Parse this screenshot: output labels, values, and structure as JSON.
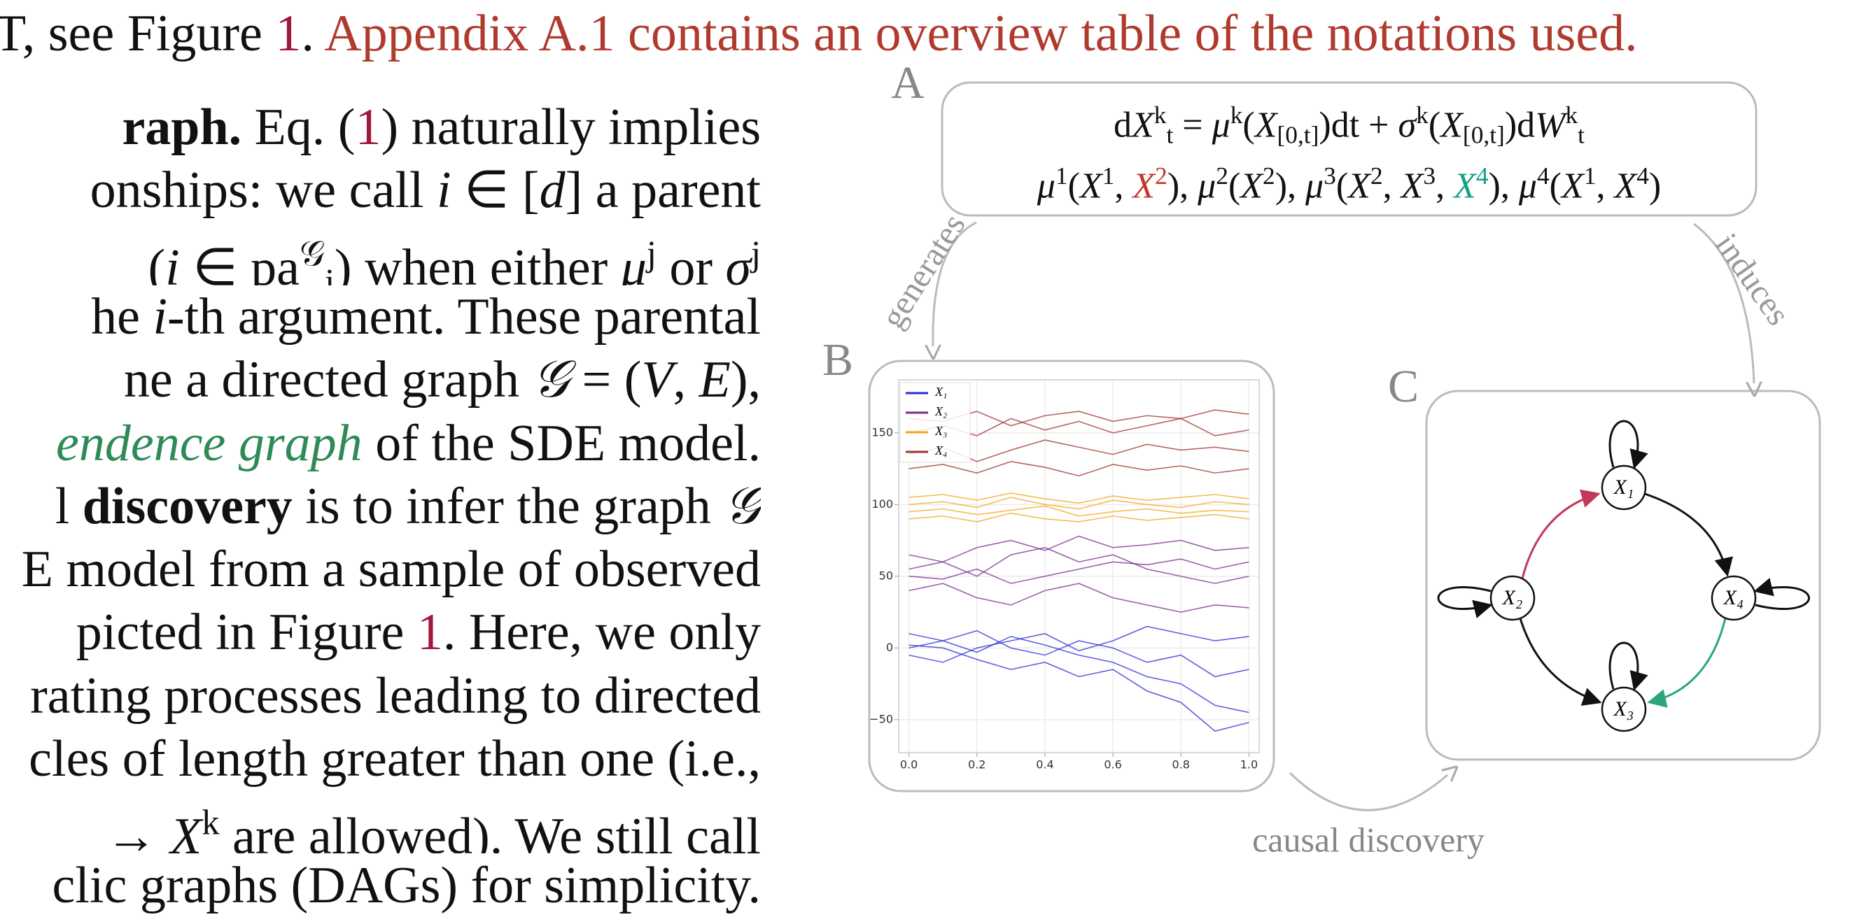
{
  "text": {
    "top_line": [
      {
        "t": "T, see Figure "
      },
      {
        "t": "1",
        "c": "#a0183c"
      },
      {
        "t": ". "
      },
      {
        "t": "Appendix A.1 contains an overview table of the notations used.",
        "c": "#b03a2e"
      }
    ],
    "paragraph": [
      [
        {
          "t": "raph.",
          "s": "b"
        },
        {
          "t": "   Eq. ("
        },
        {
          "t": "1",
          "c": "#a0183c"
        },
        {
          "t": ") naturally implies"
        }
      ],
      [
        {
          "t": "onships: we call "
        },
        {
          "t": "i",
          "s": "i"
        },
        {
          "t": " ∈ ["
        },
        {
          "t": "d",
          "s": "i"
        },
        {
          "t": "] a parent"
        }
      ],
      [
        {
          "t": "("
        },
        {
          "t": "i",
          "s": "i"
        },
        {
          "t": " ∈ pa"
        },
        {
          "t": "𝒢",
          "s": "sup"
        },
        {
          "t": "j",
          "s": "sub"
        },
        {
          "t": ") when either "
        },
        {
          "t": "μ",
          "s": "i"
        },
        {
          "t": "j",
          "s": "sup"
        },
        {
          "t": " or "
        },
        {
          "t": "σ",
          "s": "i"
        },
        {
          "t": "j",
          "s": "sup"
        }
      ],
      [
        {
          "t": "he "
        },
        {
          "t": "i",
          "s": "i"
        },
        {
          "t": "-th argument. These parental"
        }
      ],
      [
        {
          "t": "ne a directed graph "
        },
        {
          "t": "𝒢",
          "s": "i"
        },
        {
          "t": " = ("
        },
        {
          "t": "V",
          "s": "i"
        },
        {
          "t": ", "
        },
        {
          "t": "E",
          "s": "i"
        },
        {
          "t": "),"
        }
      ],
      [
        {
          "t": "endence graph",
          "s": "i",
          "c": "#2e8b57"
        },
        {
          "t": " of the SDE model."
        }
      ],
      [
        {
          "t": "l "
        },
        {
          "t": "discovery",
          "s": "b"
        },
        {
          "t": " is to infer the graph "
        },
        {
          "t": "𝒢",
          "s": "i"
        }
      ],
      [
        {
          "t": "E model from a sample of observed"
        }
      ],
      [
        {
          "t": "picted in Figure "
        },
        {
          "t": "1",
          "c": "#a0183c"
        },
        {
          "t": ". Here, we only"
        }
      ],
      [
        {
          "t": "rating processes leading to directed"
        }
      ],
      [
        {
          "t": "cles of length greater than one (i.e.,"
        }
      ],
      [
        {
          "t": "→ "
        },
        {
          "t": "X",
          "s": "i"
        },
        {
          "t": "k",
          "s": "sup"
        },
        {
          "t": " are allowed). We still call"
        }
      ],
      [
        {
          "t": "clic graphs (DAGs) for simplicity."
        }
      ]
    ]
  },
  "figure": {
    "panel_labels": [
      "A",
      "B",
      "C"
    ],
    "equations": [
      [
        {
          "t": "d"
        },
        {
          "t": "X",
          "s": "i"
        },
        {
          "t": "k",
          "s": "sup"
        },
        {
          "t": "t",
          "s": "sub"
        },
        {
          "t": " = "
        },
        {
          "t": "μ",
          "s": "i"
        },
        {
          "t": "k",
          "s": "sup"
        },
        {
          "t": "("
        },
        {
          "t": "X",
          "s": "i"
        },
        {
          "t": "[0,t]",
          "s": "sub"
        },
        {
          "t": ")dt + "
        },
        {
          "t": "σ",
          "s": "i"
        },
        {
          "t": "k",
          "s": "sup"
        },
        {
          "t": "("
        },
        {
          "t": "X",
          "s": "i"
        },
        {
          "t": "[0,t]",
          "s": "sub"
        },
        {
          "t": ")d"
        },
        {
          "t": "W",
          "s": "i"
        },
        {
          "t": "k",
          "s": "sup"
        },
        {
          "t": "t",
          "s": "sub"
        }
      ],
      [
        {
          "t": "μ",
          "s": "i"
        },
        {
          "t": "1",
          "s": "sup"
        },
        {
          "t": "("
        },
        {
          "t": "X",
          "s": "i"
        },
        {
          "t": "1",
          "s": "sup"
        },
        {
          "t": ", "
        },
        {
          "t": "X",
          "s": "i",
          "c": "#c0392b"
        },
        {
          "t": "2",
          "s": "sup",
          "c": "#c0392b"
        },
        {
          "t": "), "
        },
        {
          "t": "μ",
          "s": "i"
        },
        {
          "t": "2",
          "s": "sup"
        },
        {
          "t": "("
        },
        {
          "t": "X",
          "s": "i"
        },
        {
          "t": "2",
          "s": "sup"
        },
        {
          "t": "), "
        },
        {
          "t": "μ",
          "s": "i"
        },
        {
          "t": "3",
          "s": "sup"
        },
        {
          "t": "("
        },
        {
          "t": "X",
          "s": "i"
        },
        {
          "t": "2",
          "s": "sup"
        },
        {
          "t": ", "
        },
        {
          "t": "X",
          "s": "i"
        },
        {
          "t": "3",
          "s": "sup"
        },
        {
          "t": ", "
        },
        {
          "t": "X",
          "s": "i",
          "c": "#16a085"
        },
        {
          "t": "4",
          "s": "sup",
          "c": "#16a085"
        },
        {
          "t": "), "
        },
        {
          "t": "μ",
          "s": "i"
        },
        {
          "t": "4",
          "s": "sup"
        },
        {
          "t": "("
        },
        {
          "t": "X",
          "s": "i"
        },
        {
          "t": "1",
          "s": "sup"
        },
        {
          "t": ", "
        },
        {
          "t": "X",
          "s": "i"
        },
        {
          "t": "4",
          "s": "sup"
        },
        {
          "t": ")"
        }
      ]
    ],
    "arrow_labels": {
      "generates": "generates",
      "induces": "induces",
      "discovery": "causal discovery"
    },
    "graph": {
      "nodes": [
        {
          "label": "X₁"
        },
        {
          "label": "X₂"
        },
        {
          "label": "X₃"
        },
        {
          "label": "X₄"
        }
      ]
    }
  },
  "chart_data": {
    "type": "line",
    "x": [
      0,
      0.1,
      0.2,
      0.3,
      0.4,
      0.5,
      0.6,
      0.7,
      0.8,
      0.9,
      1.0
    ],
    "xlim": [
      -0.03,
      1.03
    ],
    "ylim": [
      -73,
      187
    ],
    "xticks": [
      {
        "value": 0,
        "label": "0.0"
      },
      {
        "value": 0.2,
        "label": "0.2"
      },
      {
        "value": 0.4,
        "label": "0.4"
      },
      {
        "value": 0.6,
        "label": "0.6"
      },
      {
        "value": 0.8,
        "label": "0.8"
      },
      {
        "value": 1.0,
        "label": "1.0"
      }
    ],
    "yticks": [
      {
        "value": -50,
        "label": "−50"
      },
      0,
      50,
      100,
      150
    ],
    "grid": true,
    "legend": "upper left",
    "series": [
      {
        "name": "X₁",
        "color": "#2a2ad6",
        "paths": [
          [
            0,
            5,
            -3,
            8,
            2,
            -5,
            -10,
            -20,
            -25,
            -40,
            -45
          ],
          [
            10,
            5,
            12,
            0,
            -5,
            5,
            0,
            -10,
            -5,
            -20,
            -15
          ],
          [
            -5,
            -10,
            0,
            5,
            10,
            -2,
            5,
            15,
            10,
            5,
            8
          ],
          [
            2,
            0,
            -8,
            -15,
            -10,
            -20,
            -15,
            -30,
            -38,
            -58,
            -52
          ]
        ]
      },
      {
        "name": "X₂",
        "color": "#7b2a8c",
        "paths": [
          [
            55,
            60,
            50,
            65,
            70,
            60,
            65,
            55,
            50,
            45,
            50
          ],
          [
            40,
            45,
            35,
            30,
            40,
            45,
            35,
            30,
            25,
            30,
            28
          ],
          [
            65,
            60,
            70,
            75,
            68,
            78,
            70,
            72,
            75,
            68,
            70
          ],
          [
            50,
            48,
            55,
            45,
            50,
            55,
            60,
            58,
            62,
            55,
            60
          ]
        ]
      },
      {
        "name": "X₃",
        "color": "#f2a516",
        "paths": [
          [
            100,
            102,
            98,
            105,
            100,
            97,
            103,
            100,
            98,
            102,
            100
          ],
          [
            95,
            97,
            93,
            96,
            99,
            92,
            95,
            97,
            94,
            96,
            95
          ],
          [
            105,
            107,
            103,
            108,
            104,
            101,
            106,
            103,
            105,
            107,
            104
          ],
          [
            90,
            92,
            88,
            94,
            90,
            88,
            92,
            89,
            91,
            93,
            90
          ]
        ]
      },
      {
        "name": "X₄",
        "color": "#a3302e",
        "paths": [
          [
            150,
            155,
            148,
            160,
            152,
            158,
            150,
            155,
            160,
            148,
            152
          ],
          [
            135,
            140,
            130,
            138,
            145,
            140,
            135,
            142,
            138,
            140,
            137
          ],
          [
            125,
            128,
            122,
            130,
            126,
            120,
            128,
            124,
            127,
            122,
            125
          ],
          [
            160,
            158,
            165,
            155,
            162,
            165,
            158,
            162,
            160,
            166,
            163
          ]
        ]
      }
    ]
  }
}
